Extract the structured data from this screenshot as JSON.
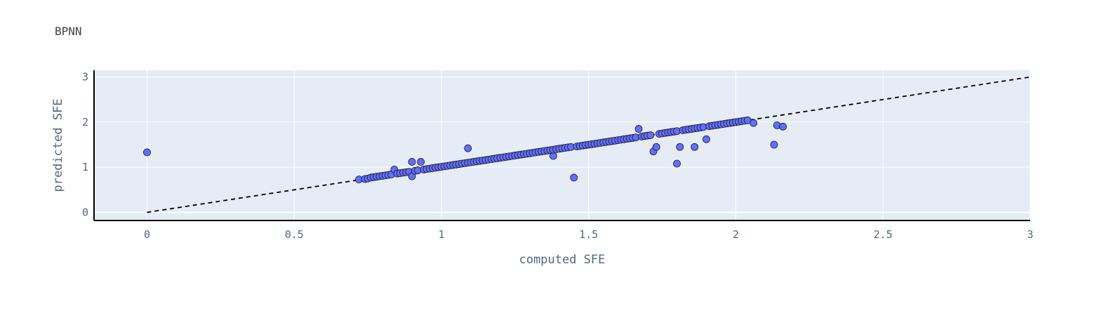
{
  "chart_data": {
    "type": "scatter",
    "title": "BPNN",
    "xlabel": "computed SFE",
    "ylabel": "predicted SFE",
    "xlim": [
      -0.18,
      3.0
    ],
    "ylim": [
      -0.18,
      3.15
    ],
    "xticks": [
      0,
      0.5,
      1,
      1.5,
      2,
      2.5,
      3
    ],
    "xtick_labels": [
      "0",
      "0.5",
      "1",
      "1.5",
      "2",
      "2.5",
      "3"
    ],
    "yticks": [
      0,
      1,
      2,
      3
    ],
    "ytick_labels": [
      "0",
      "1",
      "2",
      "3"
    ],
    "grid": true,
    "colors": {
      "plot_bg": "#e5ecf6",
      "grid": "#ffffff",
      "marker": "#636efa",
      "marker_edge": "#1a1a2e",
      "line": "#000000"
    },
    "reference_line": {
      "style": "dashed",
      "x": [
        0,
        3
      ],
      "y": [
        0,
        3
      ]
    },
    "series": [
      {
        "marker": "circle",
        "x": [
          0.0,
          0.72,
          0.74,
          0.75,
          0.76,
          0.77,
          0.78,
          0.79,
          0.8,
          0.81,
          0.82,
          0.83,
          0.84,
          0.85,
          0.86,
          0.87,
          0.88,
          0.89,
          0.9,
          0.9,
          0.91,
          0.92,
          0.93,
          0.94,
          0.95,
          0.96,
          0.97,
          0.98,
          0.99,
          1.0,
          1.01,
          1.02,
          1.03,
          1.04,
          1.05,
          1.06,
          1.07,
          1.08,
          1.09,
          1.09,
          1.1,
          1.11,
          1.12,
          1.13,
          1.14,
          1.15,
          1.16,
          1.17,
          1.18,
          1.19,
          1.2,
          1.21,
          1.22,
          1.23,
          1.24,
          1.25,
          1.26,
          1.27,
          1.28,
          1.29,
          1.3,
          1.31,
          1.32,
          1.33,
          1.34,
          1.35,
          1.36,
          1.37,
          1.38,
          1.38,
          1.39,
          1.4,
          1.41,
          1.42,
          1.43,
          1.44,
          1.45,
          1.46,
          1.47,
          1.48,
          1.49,
          1.5,
          1.51,
          1.52,
          1.53,
          1.54,
          1.55,
          1.56,
          1.57,
          1.58,
          1.59,
          1.6,
          1.61,
          1.62,
          1.63,
          1.64,
          1.65,
          1.66,
          1.67,
          1.68,
          1.69,
          1.7,
          1.71,
          1.72,
          1.73,
          1.74,
          1.75,
          1.76,
          1.77,
          1.78,
          1.79,
          1.8,
          1.8,
          1.81,
          1.82,
          1.83,
          1.84,
          1.85,
          1.86,
          1.86,
          1.87,
          1.88,
          1.89,
          1.9,
          1.91,
          1.92,
          1.93,
          1.94,
          1.95,
          1.96,
          1.97,
          1.98,
          1.99,
          2.0,
          2.01,
          2.02,
          2.03,
          2.04,
          2.06,
          2.13,
          2.14,
          2.16
        ],
        "y": [
          1.33,
          0.73,
          0.74,
          0.75,
          0.77,
          0.78,
          0.79,
          0.8,
          0.81,
          0.82,
          0.83,
          0.84,
          0.95,
          0.86,
          0.87,
          0.88,
          0.89,
          0.9,
          0.8,
          1.12,
          0.92,
          0.93,
          1.12,
          0.95,
          0.96,
          0.97,
          0.98,
          0.99,
          1.0,
          1.01,
          1.02,
          1.03,
          1.04,
          1.05,
          1.06,
          1.07,
          1.08,
          1.09,
          1.42,
          1.1,
          1.11,
          1.12,
          1.13,
          1.14,
          1.15,
          1.16,
          1.17,
          1.18,
          1.19,
          1.2,
          1.21,
          1.22,
          1.23,
          1.24,
          1.25,
          1.26,
          1.27,
          1.28,
          1.29,
          1.3,
          1.31,
          1.32,
          1.33,
          1.34,
          1.35,
          1.36,
          1.37,
          1.38,
          1.25,
          1.39,
          1.4,
          1.41,
          1.42,
          1.43,
          1.44,
          1.45,
          0.77,
          1.46,
          1.47,
          1.48,
          1.49,
          1.5,
          1.51,
          1.52,
          1.53,
          1.54,
          1.55,
          1.56,
          1.57,
          1.58,
          1.59,
          1.6,
          1.61,
          1.62,
          1.63,
          1.64,
          1.65,
          1.66,
          1.85,
          1.68,
          1.69,
          1.7,
          1.71,
          1.35,
          1.45,
          1.74,
          1.75,
          1.76,
          1.77,
          1.78,
          1.79,
          1.8,
          1.08,
          1.45,
          1.82,
          1.83,
          1.84,
          1.85,
          1.86,
          1.45,
          1.87,
          1.88,
          1.89,
          1.62,
          1.91,
          1.92,
          1.93,
          1.94,
          1.95,
          1.96,
          1.97,
          1.98,
          1.99,
          2.0,
          2.01,
          2.02,
          2.03,
          2.04,
          1.98,
          1.5,
          1.93,
          1.9
        ]
      }
    ]
  }
}
